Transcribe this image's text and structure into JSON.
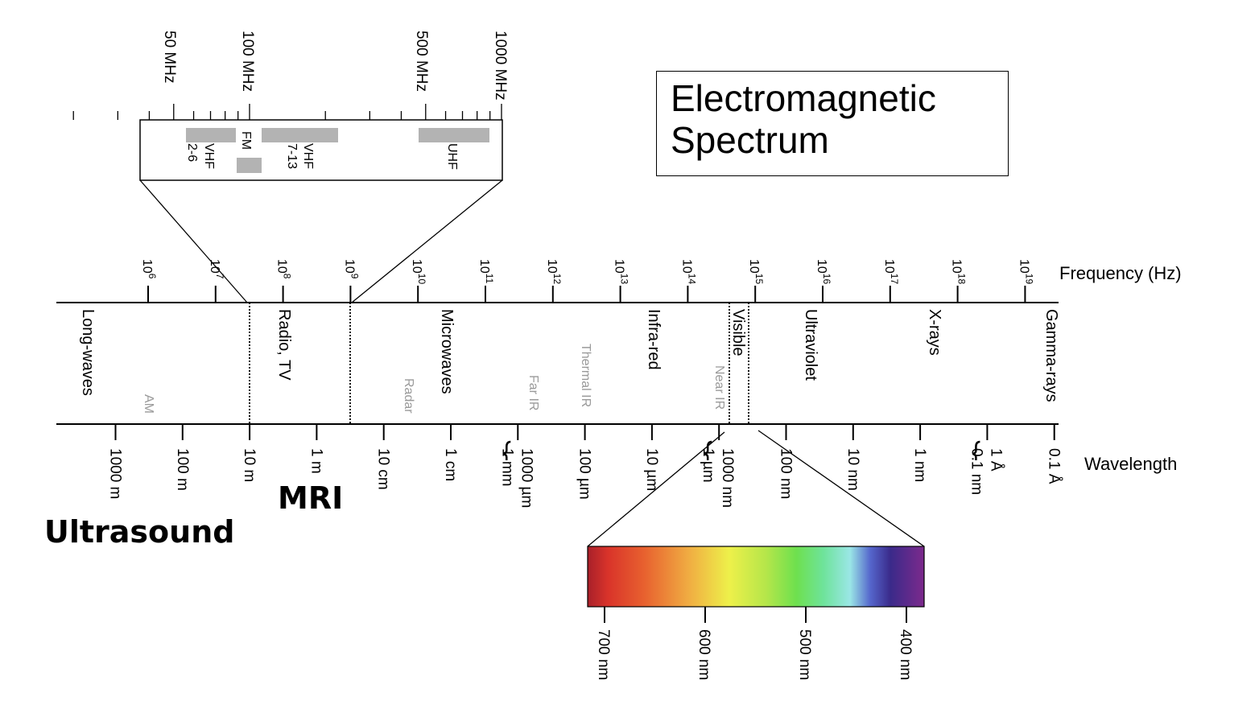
{
  "title": {
    "line1": "Electromagnetic",
    "line2": "Spectrum"
  },
  "annotations": {
    "mri": "MRI",
    "ultrasound": "Ultrasound"
  },
  "frequency_axis": {
    "title": "Frequency (Hz)",
    "ticks": [
      {
        "base": "10",
        "exp": "6"
      },
      {
        "base": "10",
        "exp": "7"
      },
      {
        "base": "10",
        "exp": "8"
      },
      {
        "base": "10",
        "exp": "9"
      },
      {
        "base": "10",
        "exp": "10"
      },
      {
        "base": "10",
        "exp": "11"
      },
      {
        "base": "10",
        "exp": "12"
      },
      {
        "base": "10",
        "exp": "13"
      },
      {
        "base": "10",
        "exp": "14"
      },
      {
        "base": "10",
        "exp": "15"
      },
      {
        "base": "10",
        "exp": "16"
      },
      {
        "base": "10",
        "exp": "17"
      },
      {
        "base": "10",
        "exp": "18"
      },
      {
        "base": "10",
        "exp": "19"
      }
    ]
  },
  "wavelength_axis": {
    "title": "Wavelength",
    "ticks": [
      {
        "lines": [
          "1000 m"
        ]
      },
      {
        "lines": [
          "100 m"
        ]
      },
      {
        "lines": [
          "10 m"
        ]
      },
      {
        "lines": [
          "1 m"
        ]
      },
      {
        "lines": [
          "10 cm"
        ]
      },
      {
        "lines": [
          "1 cm"
        ]
      },
      {
        "lines": [
          "1000 µm",
          "1 mm"
        ],
        "brace": true
      },
      {
        "lines": [
          "100 µm"
        ]
      },
      {
        "lines": [
          "10 µm"
        ]
      },
      {
        "lines": [
          "1000 nm",
          "1 µm"
        ],
        "brace": true
      },
      {
        "lines": [
          "100 nm"
        ]
      },
      {
        "lines": [
          "10 nm"
        ]
      },
      {
        "lines": [
          "1 nm"
        ]
      },
      {
        "lines": [
          "1 Å",
          "0.1 nm"
        ],
        "brace": true
      },
      {
        "lines": [
          "0.1 Å"
        ]
      }
    ]
  },
  "regions": [
    {
      "label": "Long-waves",
      "style": "main"
    },
    {
      "label": "AM",
      "style": "sub"
    },
    {
      "label": "Radio, TV",
      "style": "main"
    },
    {
      "label": "Radar",
      "style": "sub"
    },
    {
      "label": "Microwaves",
      "style": "main"
    },
    {
      "label": "Far IR",
      "style": "sub"
    },
    {
      "label": "Thermal IR",
      "style": "sub"
    },
    {
      "label": "Infra-red",
      "style": "main"
    },
    {
      "label": "Near IR",
      "style": "sub"
    },
    {
      "label": "Visible",
      "style": "main"
    },
    {
      "label": "Ultraviolet",
      "style": "main"
    },
    {
      "label": "X-rays",
      "style": "main"
    },
    {
      "label": "Gamma-rays",
      "style": "main"
    }
  ],
  "radio_inset": {
    "ticks": [
      "50 MHz",
      "100 MHz",
      "500 MHz",
      "1000 MHz"
    ],
    "bands": [
      {
        "lines": [
          "VHF",
          "2-6"
        ]
      },
      {
        "lines": [
          "FM"
        ]
      },
      {
        "lines": [
          "VHF",
          "7-13"
        ]
      },
      {
        "lines": [
          "UHF"
        ]
      }
    ],
    "band_color": "#b3b3b3"
  },
  "visible_inset": {
    "ticks": [
      "700 nm",
      "600 nm",
      "500 nm",
      "400 nm"
    ],
    "gradient_colors": [
      "#c0262a",
      "#e0442e",
      "#ec7a30",
      "#f3b441",
      "#eef04a",
      "#a6e34a",
      "#70e04e",
      "#6ee7a8",
      "#8ee3e6",
      "#4d57c4",
      "#3f2d8c",
      "#7a2a8c"
    ]
  }
}
